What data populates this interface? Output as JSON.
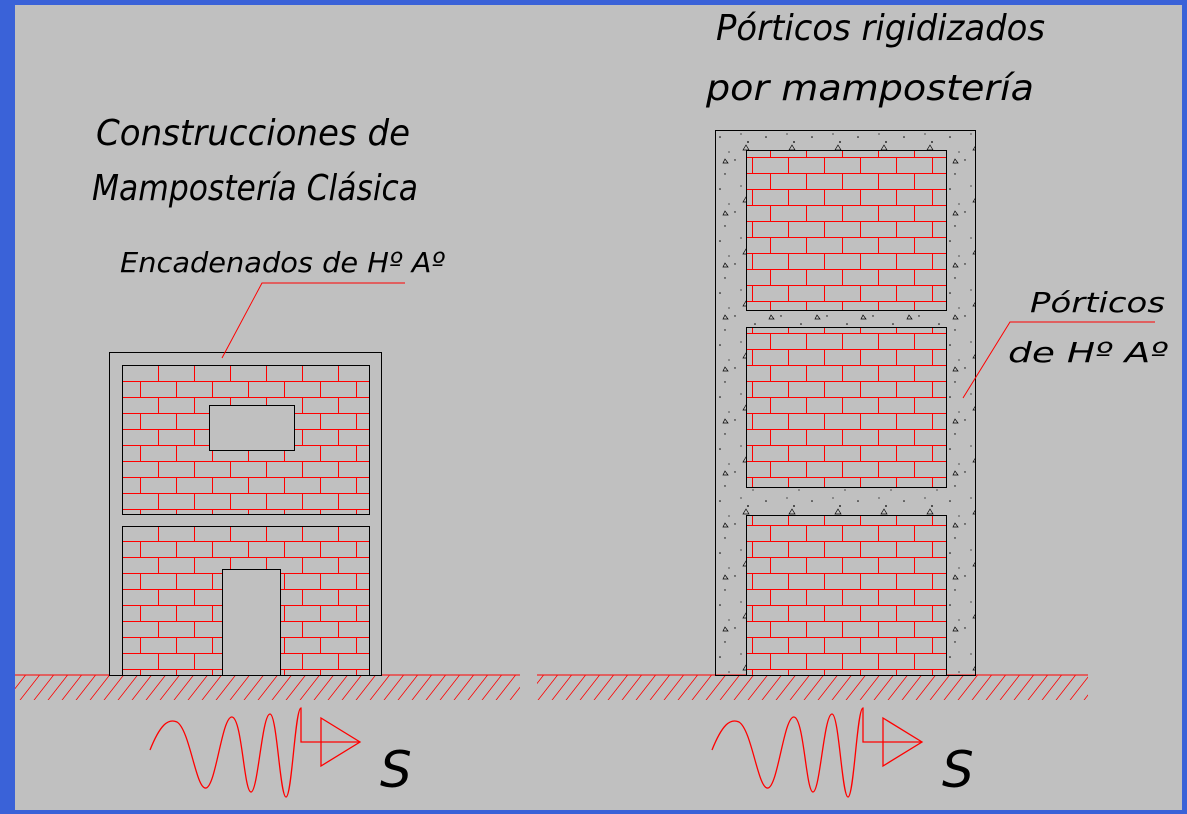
{
  "left": {
    "title": [
      "Construcciones de",
      "Mampostería Clásica"
    ],
    "label": "Encadenados de Hº Aº",
    "symbol": "S"
  },
  "right": {
    "title": [
      "Pórticos rigidizados",
      "por mampostería"
    ],
    "label": [
      "Pórticos",
      "de Hº Aº"
    ],
    "symbol": "S"
  }
}
